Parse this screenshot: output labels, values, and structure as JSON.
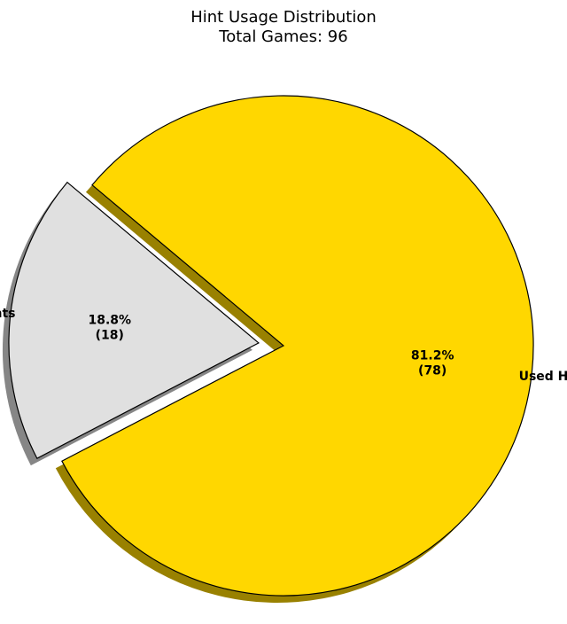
{
  "chart_data": {
    "type": "pie",
    "title": "Hint Usage Distribution",
    "subtitle": "Total Games: 96",
    "total": 96,
    "slices": [
      {
        "label": "No Hints",
        "value": 18,
        "percent_label": "18.8%",
        "count_label": "(18)",
        "color": "#e0e0e0",
        "exploded": true
      },
      {
        "label": "Used Hints",
        "value": 78,
        "percent_label": "81.2%",
        "count_label": "(78)",
        "color": "#ffd700",
        "exploded": false
      }
    ],
    "shadow": true,
    "start_angle_deg": 140,
    "counterclockwise": true,
    "edge_color": "#000000"
  }
}
